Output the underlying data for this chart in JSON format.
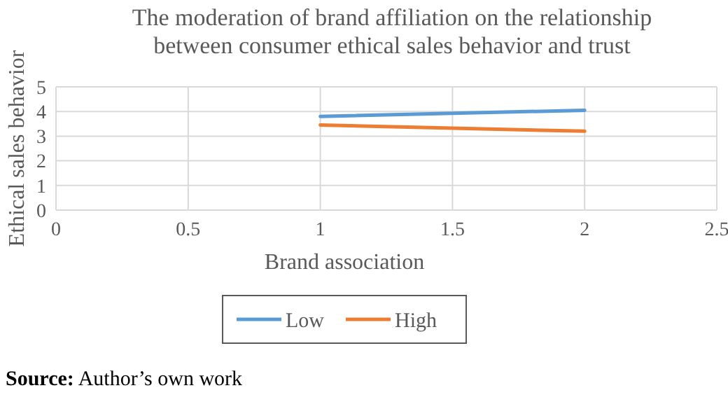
{
  "chart_data": {
    "type": "line",
    "title": "The moderation of brand affiliation on the relationship\nbetween consumer ethical sales behavior and trust",
    "xlabel": "Brand association",
    "ylabel": "Ethical sales behavior",
    "x": [
      1,
      2
    ],
    "series": [
      {
        "name": "Low",
        "color": "#5b9bd5",
        "values": [
          3.8,
          4.05
        ]
      },
      {
        "name": "High",
        "color": "#ed7d31",
        "values": [
          3.45,
          3.2
        ]
      }
    ],
    "xlim": [
      0,
      2.5
    ],
    "xticks": [
      0,
      0.5,
      1,
      1.5,
      2,
      2.5
    ],
    "ylim": [
      0,
      5
    ],
    "yticks": [
      0,
      1,
      2,
      3,
      4,
      5
    ],
    "grid": true,
    "legend": "bottom",
    "marker": "none",
    "line_style": "solid",
    "annotations": [
      "Source: Author’s own work"
    ]
  }
}
